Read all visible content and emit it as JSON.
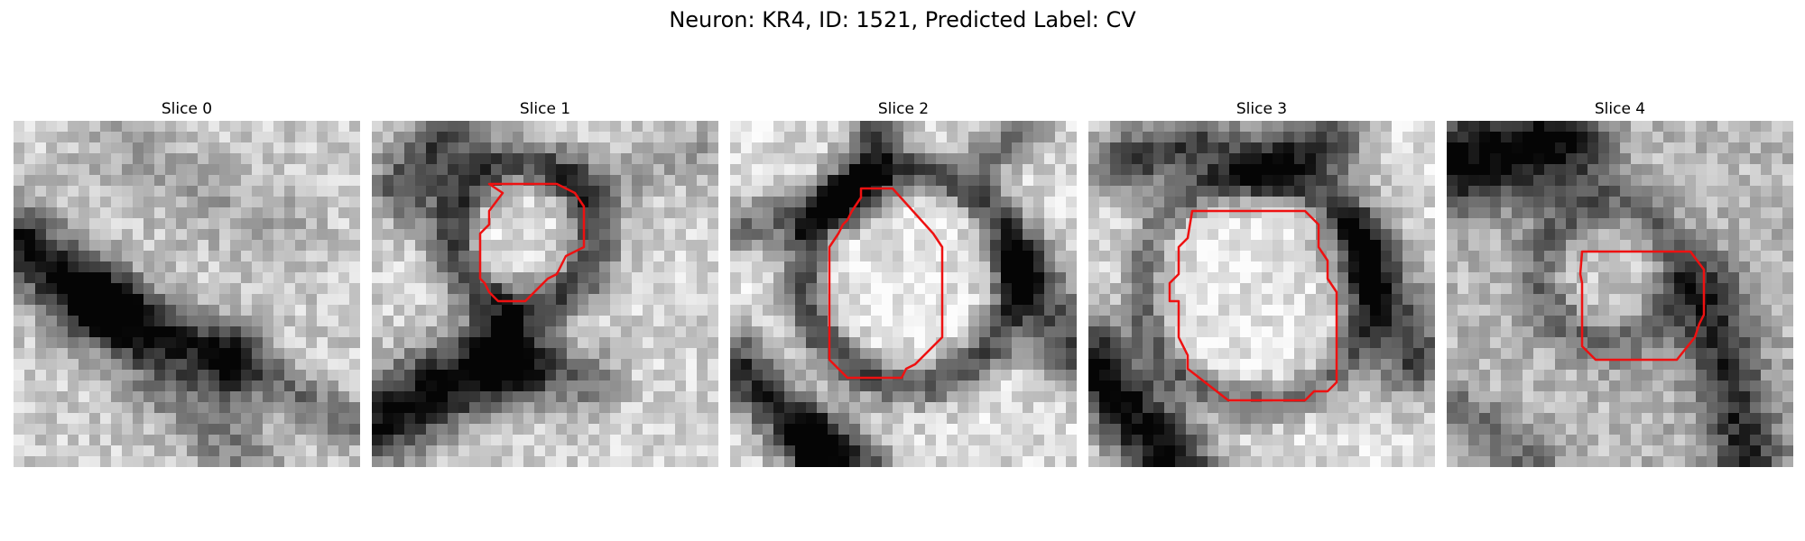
{
  "figure": {
    "title": "Neuron: KR4, ID: 1521, Predicted Label: CV"
  },
  "panels": [
    {
      "title": "Slice 0"
    },
    {
      "title": "Slice 1"
    },
    {
      "title": "Slice 2"
    },
    {
      "title": "Slice 3"
    },
    {
      "title": "Slice 4"
    }
  ],
  "colors": {
    "contour": "#ee1111",
    "background": "#ffffff"
  }
}
